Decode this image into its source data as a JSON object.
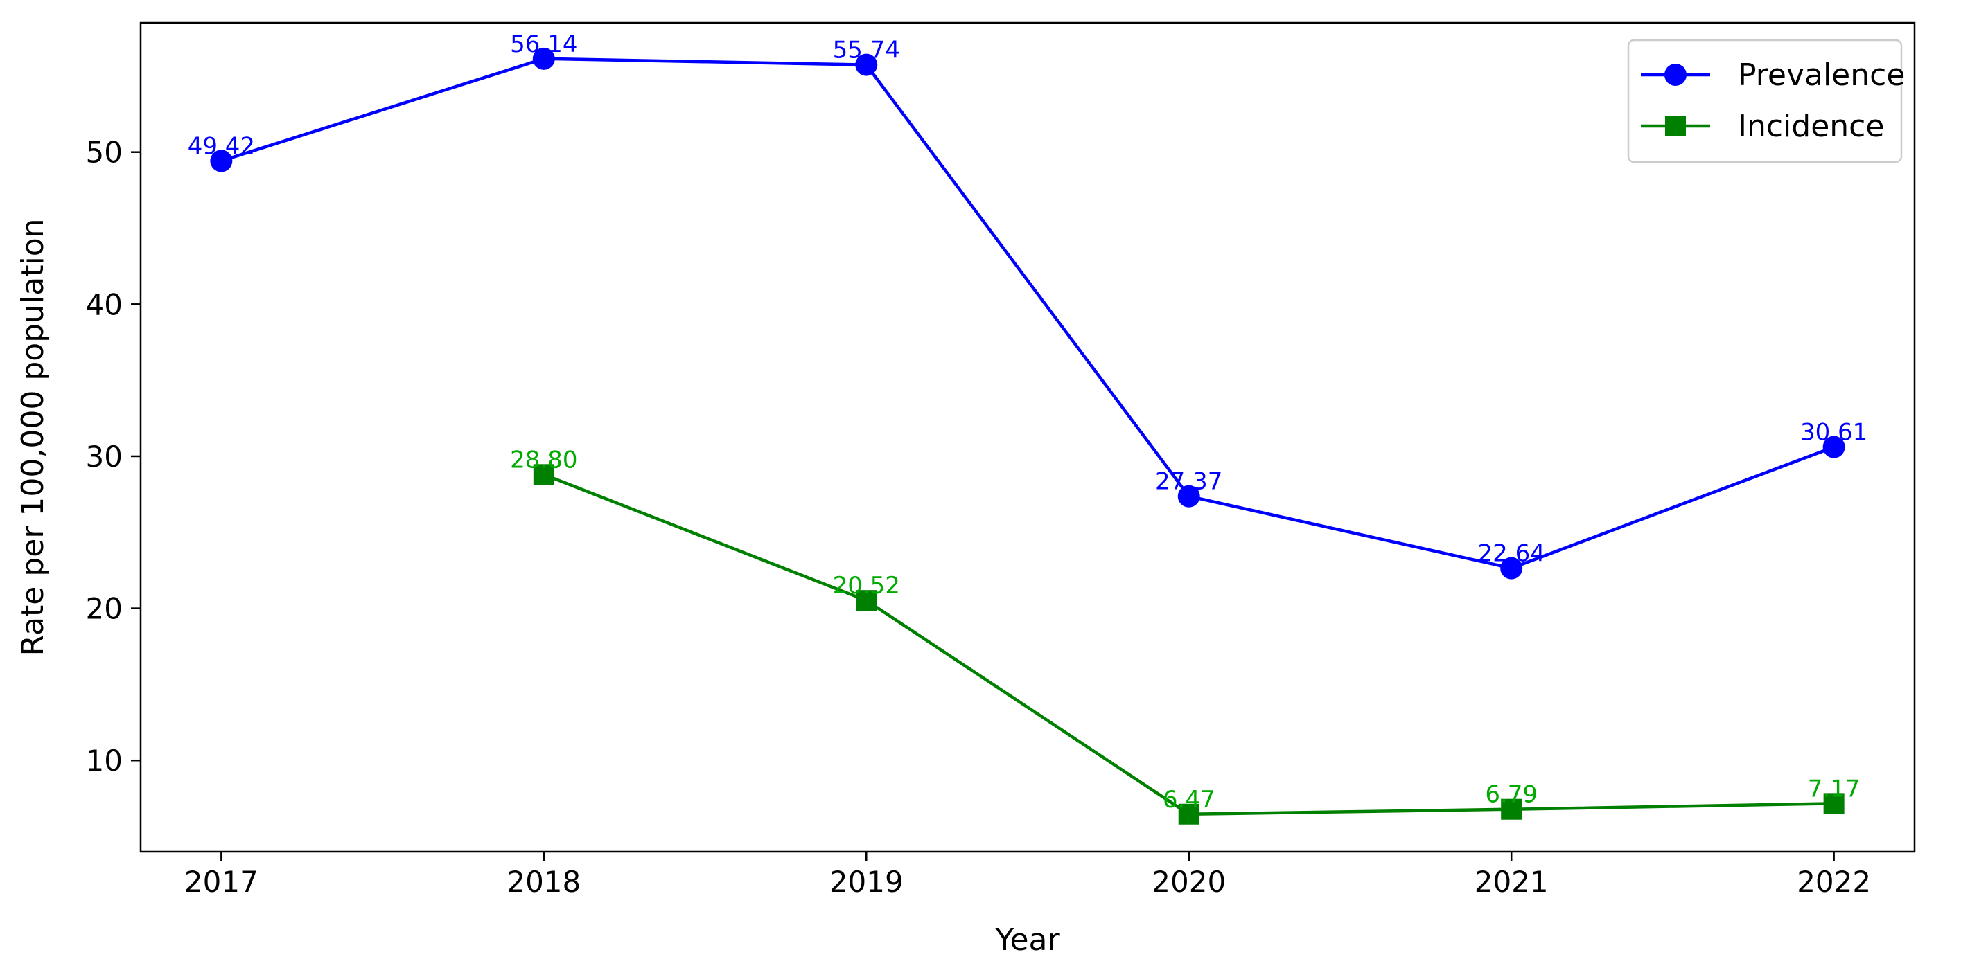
{
  "chart_data": {
    "type": "line",
    "title": "",
    "xlabel": "Year",
    "ylabel": "Rate per 100,000 population",
    "x": [
      2017,
      2018,
      2019,
      2020,
      2021,
      2022
    ],
    "x_tick_labels": [
      "2017",
      "2018",
      "2019",
      "2020",
      "2021",
      "2022"
    ],
    "y_ticks": [
      10,
      20,
      30,
      40,
      50
    ],
    "y_tick_labels": [
      "10",
      "20",
      "30",
      "40",
      "50"
    ],
    "xlim": [
      2016.75,
      2022.25
    ],
    "ylim": [
      4.0,
      58.5
    ],
    "grid": false,
    "legend_position": "top-right",
    "series": [
      {
        "name": "Prevalence",
        "color": "#0000ff",
        "marker": "circle",
        "values": [
          49.42,
          56.14,
          55.74,
          27.37,
          22.64,
          30.61
        ],
        "labels": [
          "49.42",
          "56.14",
          "55.74",
          "27.37",
          "22.64",
          "30.61"
        ]
      },
      {
        "name": "Incidence",
        "color": "#008000",
        "label_color": "#00aa00",
        "marker": "square",
        "values": [
          null,
          28.8,
          20.52,
          6.47,
          6.79,
          7.17
        ],
        "labels": [
          null,
          "28.80",
          "20.52",
          "6.47",
          "6.79",
          "7.17"
        ]
      }
    ]
  }
}
